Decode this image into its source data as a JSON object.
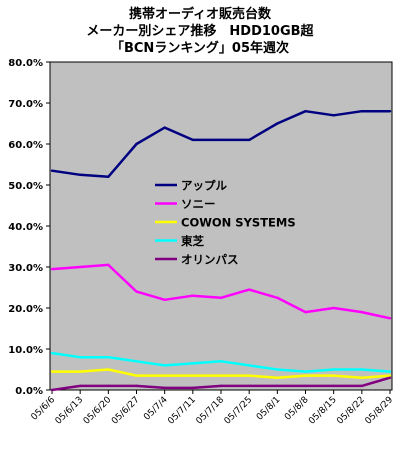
{
  "chart_data": {
    "type": "line",
    "title": [
      "携帯オーディオ販売台数",
      "メーカー別シェア推移　HDD10GB超",
      "「BCNランキング」05年週次"
    ],
    "x": [
      "05/6/6",
      "05/6/13",
      "05/6/20",
      "05/6/27",
      "05/7/4",
      "05/7/11",
      "05/7/18",
      "05/7/25",
      "05/8/1",
      "05/8/8",
      "05/8/15",
      "05/8/22",
      "05/8/29"
    ],
    "ylim": [
      0,
      80
    ],
    "yticks": [
      "0.0%",
      "10.0%",
      "20.0%",
      "30.0%",
      "40.0%",
      "50.0%",
      "60.0%",
      "70.0%",
      "80.0%"
    ],
    "grid": false,
    "legend_position": "center-right",
    "plot_background": "#c0c0c0",
    "series": [
      {
        "name": "アップル",
        "color": "#000080",
        "values": [
          53.5,
          52.5,
          52.0,
          60.0,
          64.0,
          61.0,
          61.0,
          61.0,
          65.0,
          68.0,
          67.0,
          68.0,
          68.0
        ]
      },
      {
        "name": "ソニー",
        "color": "#ff00ff",
        "values": [
          29.5,
          30.0,
          30.5,
          24.0,
          22.0,
          23.0,
          22.5,
          24.5,
          22.5,
          19.0,
          20.0,
          19.0,
          17.5
        ]
      },
      {
        "name": "COWON SYSTEMS",
        "color": "#ffff00",
        "values": [
          4.5,
          4.5,
          5.0,
          3.5,
          3.5,
          3.5,
          3.5,
          3.5,
          3.0,
          3.5,
          3.5,
          3.0,
          3.5
        ]
      },
      {
        "name": "東芝",
        "color": "#00ffff",
        "values": [
          9.0,
          8.0,
          8.0,
          7.0,
          6.0,
          6.5,
          7.0,
          6.0,
          5.0,
          4.5,
          5.0,
          5.0,
          4.5
        ]
      },
      {
        "name": "オリンパス",
        "color": "#800080",
        "values": [
          0.0,
          1.0,
          1.0,
          1.0,
          0.5,
          0.5,
          1.0,
          1.0,
          1.0,
          1.0,
          1.0,
          1.0,
          3.0
        ]
      }
    ]
  }
}
